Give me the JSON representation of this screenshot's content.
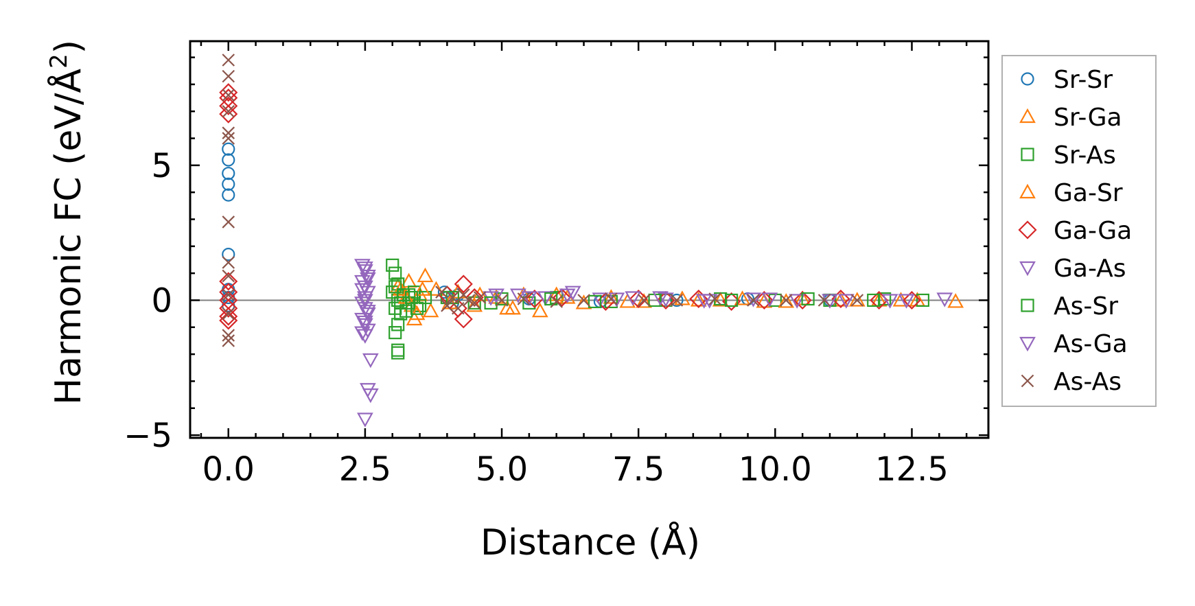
{
  "chart_data": {
    "type": "scatter",
    "title": "",
    "xlabel": "Distance (Å)",
    "ylabel_main": "Harmonic FC (eV/Å",
    "ylabel_sup": "2",
    "ylabel_close": ")",
    "xlim": [
      -0.7,
      13.9
    ],
    "ylim": [
      -5.1,
      9.6
    ],
    "xticks": [
      0.0,
      2.5,
      5.0,
      7.5,
      10.0,
      12.5
    ],
    "xtick_labels": [
      "0.0",
      "2.5",
      "5.0",
      "7.5",
      "10.0",
      "12.5"
    ],
    "yticks": [
      -5,
      0,
      5
    ],
    "ytick_labels": [
      "−5",
      "0",
      "5"
    ],
    "zero_line": 0,
    "legend_position": "outside-right",
    "series": [
      {
        "name": "Sr-Sr",
        "marker": "circle",
        "color": "#1f77b4",
        "points": [
          [
            0,
            5.6
          ],
          [
            0,
            5.2
          ],
          [
            0,
            4.7
          ],
          [
            0,
            4.3
          ],
          [
            0,
            3.9
          ],
          [
            0,
            1.7
          ],
          [
            0,
            0.4
          ],
          [
            0,
            0.1
          ],
          [
            0,
            -0.2
          ],
          [
            3.95,
            0.3
          ],
          [
            4.0,
            0.1
          ],
          [
            4.1,
            -0.1
          ],
          [
            4.2,
            0.2
          ],
          [
            5.5,
            0.05
          ],
          [
            6.8,
            -0.05
          ],
          [
            8.2,
            0.0
          ],
          [
            9.5,
            0.05
          ],
          [
            11.0,
            0.0
          ]
        ]
      },
      {
        "name": "Sr-Ga",
        "marker": "triangle-up",
        "color": "#ff7f0e",
        "points": [
          [
            3.1,
            0.5
          ],
          [
            3.2,
            0.3
          ],
          [
            3.3,
            0.7
          ],
          [
            3.35,
            -0.2
          ],
          [
            3.4,
            -0.7
          ],
          [
            3.5,
            0.2
          ],
          [
            3.6,
            0.9
          ],
          [
            3.7,
            -0.4
          ],
          [
            3.8,
            0.4
          ],
          [
            4.2,
            0.3
          ],
          [
            4.5,
            -0.2
          ],
          [
            4.9,
            0.1
          ],
          [
            5.1,
            -0.3
          ],
          [
            5.4,
            0.2
          ],
          [
            5.7,
            -0.4
          ],
          [
            6.0,
            0.2
          ],
          [
            6.5,
            -0.1
          ],
          [
            7.0,
            0.1
          ],
          [
            7.6,
            -0.05
          ],
          [
            8.3,
            0.05
          ],
          [
            9.0,
            0.0
          ],
          [
            9.8,
            -0.05
          ],
          [
            10.5,
            0.05
          ],
          [
            11.2,
            0.0
          ],
          [
            11.9,
            0.0
          ],
          [
            12.6,
            0.0
          ],
          [
            13.3,
            -0.05
          ]
        ]
      },
      {
        "name": "Sr-As",
        "marker": "square",
        "color": "#2ca02c",
        "points": [
          [
            3.0,
            1.3
          ],
          [
            3.05,
            1.0
          ],
          [
            3.1,
            0.6
          ],
          [
            3.0,
            0.3
          ],
          [
            3.1,
            0.0
          ],
          [
            3.05,
            -0.3
          ],
          [
            3.15,
            -0.5
          ],
          [
            3.1,
            -0.9
          ],
          [
            3.05,
            -1.2
          ],
          [
            3.1,
            -1.85
          ],
          [
            3.1,
            -1.95
          ],
          [
            3.3,
            0.2
          ],
          [
            3.3,
            -0.1
          ],
          [
            3.4,
            0.3
          ],
          [
            3.5,
            -0.2
          ],
          [
            3.6,
            0.1
          ],
          [
            4.0,
            0.1
          ],
          [
            4.5,
            -0.1
          ],
          [
            5.0,
            0.05
          ],
          [
            5.5,
            -0.1
          ],
          [
            6.0,
            0.1
          ],
          [
            7.0,
            -0.05
          ],
          [
            8.0,
            0.0
          ],
          [
            9.0,
            0.05
          ],
          [
            10.0,
            0.0
          ],
          [
            11.0,
            0.0
          ],
          [
            12.0,
            0.05
          ],
          [
            12.7,
            0.0
          ]
        ]
      },
      {
        "name": "Ga-Sr",
        "marker": "triangle-up",
        "color": "#ff7f0e",
        "points": [
          [
            3.15,
            0.4
          ],
          [
            3.25,
            0.1
          ],
          [
            3.45,
            -0.5
          ],
          [
            3.55,
            0.4
          ],
          [
            4.05,
            -0.1
          ],
          [
            4.6,
            0.2
          ],
          [
            5.2,
            -0.3
          ],
          [
            6.2,
            0.1
          ],
          [
            7.3,
            -0.05
          ],
          [
            8.6,
            0.0
          ],
          [
            9.4,
            0.05
          ],
          [
            10.2,
            -0.05
          ],
          [
            11.5,
            0.0
          ],
          [
            12.3,
            0.0
          ]
        ]
      },
      {
        "name": "Ga-Ga",
        "marker": "diamond",
        "color": "#d62728",
        "points": [
          [
            0,
            7.7
          ],
          [
            0,
            7.5
          ],
          [
            0,
            7.2
          ],
          [
            0,
            6.9
          ],
          [
            0,
            0.7
          ],
          [
            0,
            0.3
          ],
          [
            0,
            0.0
          ],
          [
            0,
            -0.3
          ],
          [
            0,
            -0.6
          ],
          [
            0,
            -0.75
          ],
          [
            4.0,
            0.2
          ],
          [
            4.2,
            -0.3
          ],
          [
            4.3,
            0.6
          ],
          [
            4.3,
            -0.7
          ],
          [
            4.5,
            0.1
          ],
          [
            5.6,
            0.05
          ],
          [
            6.1,
            0.1
          ],
          [
            6.9,
            -0.05
          ],
          [
            7.5,
            0.05
          ],
          [
            8.0,
            0.0
          ],
          [
            8.6,
            0.05
          ],
          [
            9.2,
            -0.05
          ],
          [
            9.8,
            0.0
          ],
          [
            10.5,
            0.0
          ],
          [
            11.2,
            0.05
          ],
          [
            11.9,
            0.0
          ],
          [
            12.5,
            0.0
          ]
        ]
      },
      {
        "name": "Ga-As",
        "marker": "triangle-down",
        "color": "#9467bd",
        "points": [
          [
            2.45,
            1.3
          ],
          [
            2.5,
            1.1
          ],
          [
            2.55,
            0.9
          ],
          [
            2.45,
            0.7
          ],
          [
            2.5,
            0.5
          ],
          [
            2.55,
            0.3
          ],
          [
            2.5,
            0.1
          ],
          [
            2.45,
            -0.1
          ],
          [
            2.5,
            -0.3
          ],
          [
            2.55,
            -0.5
          ],
          [
            2.45,
            -0.7
          ],
          [
            2.5,
            -0.9
          ],
          [
            2.55,
            -1.1
          ],
          [
            2.5,
            -1.3
          ],
          [
            2.6,
            -2.2
          ],
          [
            2.55,
            -3.3
          ],
          [
            2.6,
            -3.5
          ],
          [
            2.5,
            -4.4
          ],
          [
            4.8,
            0.1
          ],
          [
            5.3,
            0.2
          ],
          [
            5.8,
            0.1
          ],
          [
            6.3,
            0.3
          ],
          [
            6.8,
            0.05
          ],
          [
            7.4,
            0.1
          ],
          [
            8.0,
            0.05
          ],
          [
            8.8,
            0.0
          ],
          [
            9.6,
            0.05
          ],
          [
            10.4,
            0.0
          ],
          [
            11.3,
            0.0
          ],
          [
            12.1,
            0.0
          ],
          [
            13.1,
            0.05
          ]
        ]
      },
      {
        "name": "As-Sr",
        "marker": "square",
        "color": "#2ca02c",
        "points": [
          [
            3.05,
            0.5
          ],
          [
            3.15,
            -0.1
          ],
          [
            3.2,
            0.2
          ],
          [
            3.25,
            -0.4
          ],
          [
            3.35,
            0.1
          ],
          [
            3.45,
            -0.3
          ],
          [
            4.1,
            0.1
          ],
          [
            4.8,
            -0.1
          ],
          [
            5.9,
            0.05
          ],
          [
            6.7,
            -0.05
          ],
          [
            7.8,
            0.0
          ],
          [
            9.2,
            0.0
          ],
          [
            10.6,
            0.05
          ],
          [
            11.8,
            0.0
          ]
        ]
      },
      {
        "name": "As-Ga",
        "marker": "triangle-down",
        "color": "#9467bd",
        "points": [
          [
            2.5,
            1.2
          ],
          [
            2.55,
            0.8
          ],
          [
            2.45,
            0.4
          ],
          [
            2.5,
            0.0
          ],
          [
            2.55,
            -0.4
          ],
          [
            2.5,
            -0.8
          ],
          [
            2.45,
            -1.2
          ],
          [
            4.9,
            0.2
          ],
          [
            5.5,
            0.1
          ],
          [
            6.2,
            0.2
          ],
          [
            7.1,
            0.05
          ],
          [
            7.9,
            0.1
          ],
          [
            8.7,
            0.0
          ],
          [
            9.9,
            0.05
          ],
          [
            11.0,
            0.0
          ],
          [
            12.4,
            0.0
          ]
        ]
      },
      {
        "name": "As-As",
        "marker": "x",
        "color": "#8c564b",
        "points": [
          [
            0,
            8.9
          ],
          [
            0,
            8.3
          ],
          [
            0,
            7.6
          ],
          [
            0,
            7.0
          ],
          [
            0,
            6.2
          ],
          [
            0,
            6.0
          ],
          [
            0,
            2.9
          ],
          [
            0,
            1.4
          ],
          [
            0,
            0.9
          ],
          [
            0,
            0.2
          ],
          [
            0,
            -0.5
          ],
          [
            0,
            -1.3
          ],
          [
            0,
            -1.5
          ],
          [
            3.9,
            0.3
          ],
          [
            4.0,
            -0.2
          ],
          [
            4.1,
            0.1
          ],
          [
            4.2,
            -0.3
          ],
          [
            4.3,
            0.2
          ],
          [
            4.4,
            0.0
          ],
          [
            4.5,
            -0.1
          ],
          [
            4.6,
            0.1
          ],
          [
            5.0,
            0.0
          ],
          [
            5.4,
            0.05
          ],
          [
            6.0,
            -0.05
          ],
          [
            6.5,
            0.0
          ],
          [
            7.0,
            0.05
          ],
          [
            7.6,
            0.0
          ],
          [
            8.2,
            0.0
          ],
          [
            8.9,
            0.05
          ],
          [
            9.6,
            0.0
          ],
          [
            10.2,
            0.0
          ],
          [
            10.9,
            0.0
          ],
          [
            11.5,
            0.0
          ]
        ]
      }
    ]
  }
}
